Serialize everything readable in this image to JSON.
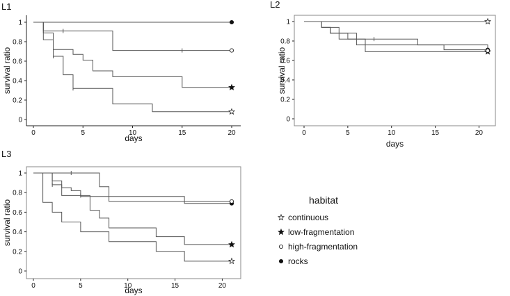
{
  "legend": {
    "title": "habitat",
    "entries": [
      {
        "label": "continuous",
        "marker": "star-open"
      },
      {
        "label": "low-fragmentation",
        "marker": "star-filled"
      },
      {
        "label": "high-fragmentation",
        "marker": "circle-open"
      },
      {
        "label": "rocks",
        "marker": "circle-filled"
      }
    ]
  },
  "chart_data": [
    {
      "panel": "L1",
      "type": "line",
      "step": true,
      "xlabel": "days",
      "ylabel": "survival ratio",
      "xlim": [
        0,
        20
      ],
      "ylim": [
        0,
        1
      ],
      "xticks": [
        0,
        5,
        10,
        15,
        20
      ],
      "yticks": [
        "0",
        "0.2",
        "0.4",
        "0.6",
        "0.8",
        "1"
      ],
      "frame": false,
      "series": [
        {
          "marker": "circle-filled",
          "x": [
            0,
            20
          ],
          "y": [
            1,
            1
          ],
          "censor_x": []
        },
        {
          "marker": "circle-open",
          "x": [
            0,
            1,
            8,
            20
          ],
          "y": [
            1,
            0.91,
            0.71,
            0.71
          ],
          "censor_x": [
            3,
            15
          ]
        },
        {
          "marker": "star-filled",
          "x": [
            0,
            1,
            2,
            4,
            5,
            6,
            8,
            15,
            20
          ],
          "y": [
            1,
            0.89,
            0.72,
            0.67,
            0.61,
            0.5,
            0.44,
            0.33,
            0.33
          ],
          "censor_x": []
        },
        {
          "marker": "star-open",
          "x": [
            0,
            1,
            2,
            3,
            4,
            8,
            12,
            20
          ],
          "y": [
            1,
            0.82,
            0.65,
            0.46,
            0.32,
            0.16,
            0.08,
            0.08
          ],
          "censor_x": [
            2,
            4
          ]
        }
      ]
    },
    {
      "panel": "L2",
      "type": "line",
      "step": true,
      "xlabel": "days",
      "ylabel": "survival ratio",
      "xlim": [
        0,
        21
      ],
      "ylim": [
        0,
        1
      ],
      "xticks": [
        0,
        5,
        10,
        15,
        20
      ],
      "yticks": [
        "0",
        "0.2",
        "0.4",
        "0.6",
        "0.8",
        "1"
      ],
      "frame": true,
      "series": [
        {
          "marker": "star-open",
          "x": [
            0,
            21
          ],
          "y": [
            1,
            1
          ],
          "censor_x": []
        },
        {
          "marker": "circle-filled",
          "x": [
            0,
            2,
            3,
            4,
            6,
            7,
            13,
            16,
            21
          ],
          "y": [
            1,
            0.94,
            0.88,
            0.88,
            0.82,
            0.82,
            0.76,
            0.71,
            0.71
          ],
          "censor_x": [
            8
          ]
        },
        {
          "marker": "star-filled",
          "x": [
            0,
            2,
            3,
            5,
            7,
            16,
            21
          ],
          "y": [
            1,
            0.94,
            0.88,
            0.82,
            0.69,
            0.69,
            0.69
          ],
          "censor_x": []
        },
        {
          "marker": "circle-open",
          "x": [
            0,
            2,
            4,
            6,
            13,
            21
          ],
          "y": [
            1,
            0.94,
            0.82,
            0.76,
            0.76,
            0.7
          ],
          "censor_x": []
        }
      ]
    },
    {
      "panel": "L3",
      "type": "line",
      "step": true,
      "xlabel": "days",
      "ylabel": "survival ratio",
      "xlim": [
        0,
        21
      ],
      "ylim": [
        0,
        1
      ],
      "xticks": [
        0,
        5,
        10,
        15,
        20
      ],
      "yticks": [
        "0",
        "0.2",
        "0.4",
        "0.6",
        "0.8",
        "1"
      ],
      "frame": true,
      "series": [
        {
          "marker": "circle-filled",
          "x": [
            0,
            7,
            8,
            16,
            21
          ],
          "y": [
            1,
            0.86,
            0.71,
            0.69,
            0.69
          ],
          "censor_x": [
            4
          ]
        },
        {
          "marker": "circle-open",
          "x": [
            0,
            2,
            3,
            4,
            5,
            16,
            21
          ],
          "y": [
            1,
            0.92,
            0.85,
            0.82,
            0.76,
            0.71,
            0.71
          ],
          "censor_x": []
        },
        {
          "marker": "star-filled",
          "x": [
            0,
            2,
            3,
            6,
            7,
            8,
            13,
            16,
            21
          ],
          "y": [
            1,
            0.88,
            0.77,
            0.62,
            0.54,
            0.44,
            0.35,
            0.27,
            0.27
          ],
          "censor_x": [
            2,
            5
          ]
        },
        {
          "marker": "star-open",
          "x": [
            0,
            1,
            2,
            3,
            5,
            8,
            13,
            16,
            21
          ],
          "y": [
            1,
            0.7,
            0.6,
            0.5,
            0.4,
            0.3,
            0.2,
            0.1,
            0.1
          ],
          "censor_x": []
        }
      ]
    }
  ]
}
